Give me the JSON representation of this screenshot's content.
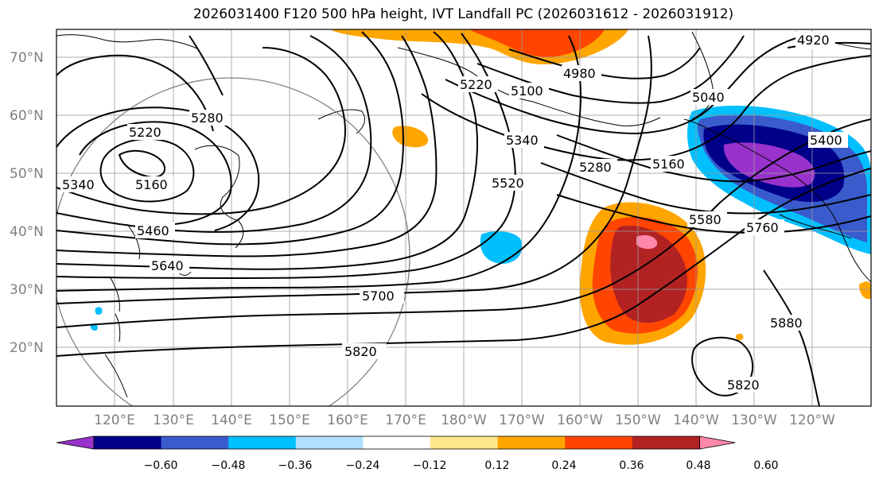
{
  "title": "2026031400 F120 500 hPa height, IVT Landfall PC (2026031612 - 2026031912)",
  "lat_labels": [
    "70°N",
    "60°N",
    "50°N",
    "40°N",
    "30°N",
    "20°N"
  ],
  "lon_labels": [
    "120°E",
    "130°E",
    "140°E",
    "150°E",
    "160°E",
    "170°E",
    "180°W",
    "170°W",
    "160°W",
    "150°W",
    "140°W",
    "130°W",
    "120°W"
  ],
  "contour_labels": [
    "4920",
    "4980",
    "5040",
    "5100",
    "5160",
    "5160",
    "5220",
    "5220",
    "5280",
    "5280",
    "5340",
    "5340",
    "5400",
    "5460",
    "5520",
    "5580",
    "5640",
    "5700",
    "5760",
    "5820",
    "5820",
    "5880"
  ],
  "colorbar": {
    "ticks": [
      "−0.60",
      "−0.48",
      "−0.36",
      "−0.24",
      "−0.12",
      "0.12",
      "0.24",
      "0.36",
      "0.48",
      "0.60"
    ],
    "colors": [
      "#9932cc",
      "#00008b",
      "#3a5bcc",
      "#00bfff",
      "#b0e0ff",
      "#ffffff",
      "#ffe88a",
      "#ffa500",
      "#ff4500",
      "#b22222",
      "#ff88aa"
    ]
  },
  "colors": {
    "land_outline": "#000000",
    "grid": "#999999",
    "circle": "#808080",
    "contour": "#000000"
  }
}
